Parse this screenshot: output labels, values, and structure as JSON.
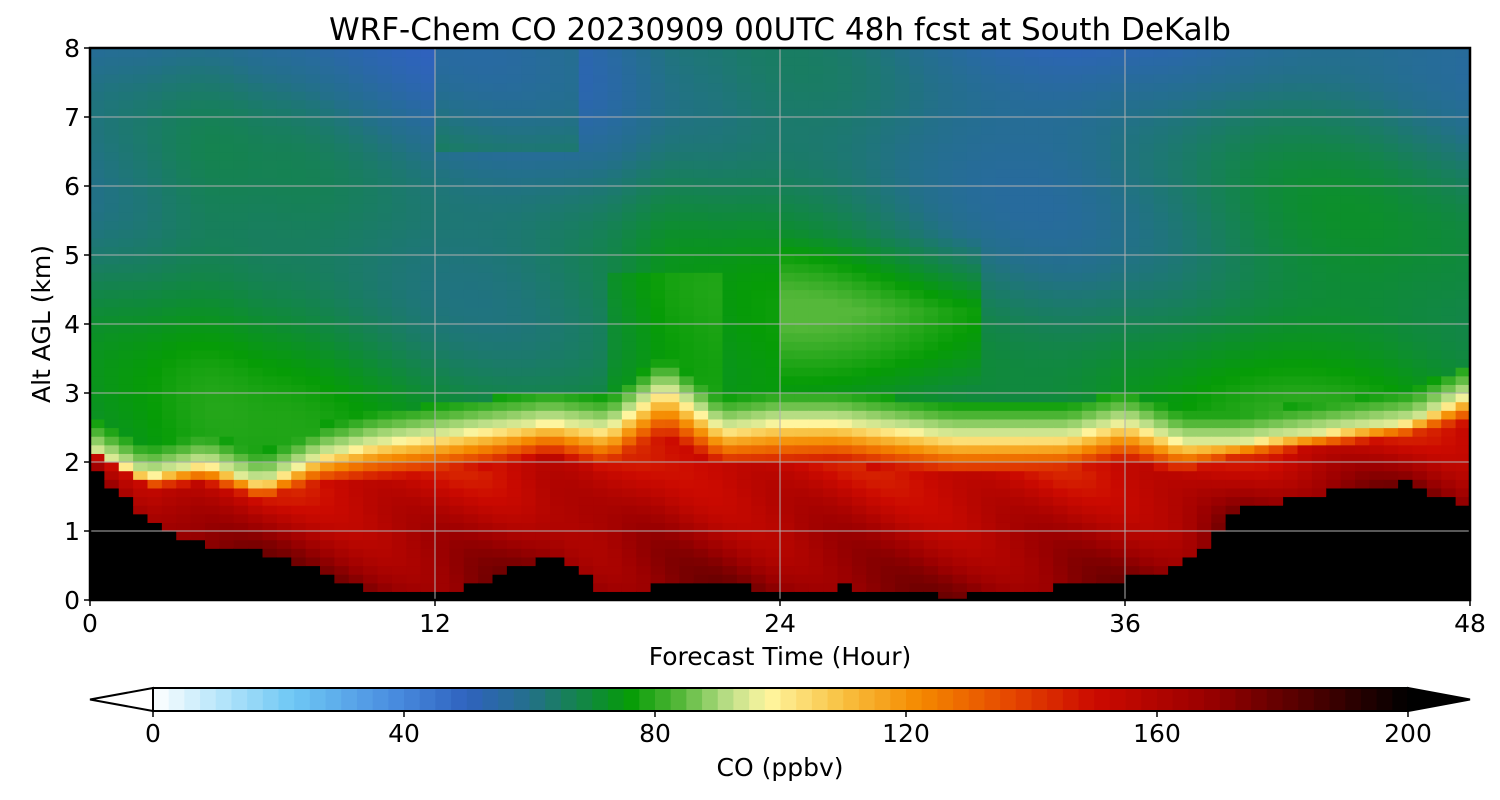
{
  "chart_data": {
    "type": "heatmap",
    "title": "WRF-Chem CO  20230909 00UTC 48h fcst at South DeKalb",
    "xlabel": "Forecast Time (Hour)",
    "ylabel": "Alt AGL (km)",
    "xlim": [
      0,
      48
    ],
    "ylim": [
      0,
      8
    ],
    "x_ticks": [
      "0",
      "12",
      "24",
      "36",
      "48"
    ],
    "y_ticks": [
      "0",
      "1",
      "2",
      "3",
      "4",
      "5",
      "6",
      "7",
      "8"
    ],
    "grid": true,
    "colorbar": {
      "label": "CO  (ppbv)",
      "range": [
        0,
        200
      ],
      "ticks": [
        "0",
        "40",
        "80",
        "120",
        "160",
        "200"
      ],
      "extend": "both",
      "palette": [
        {
          "v": 0,
          "c": "#ffffff"
        },
        {
          "v": 8,
          "c": "#c8ecfb"
        },
        {
          "v": 22,
          "c": "#6fc8f5"
        },
        {
          "v": 38,
          "c": "#4a8ee0"
        },
        {
          "v": 50,
          "c": "#2f62bf"
        },
        {
          "v": 60,
          "c": "#23708a"
        },
        {
          "v": 70,
          "c": "#0f8a3a"
        },
        {
          "v": 76,
          "c": "#069c06"
        },
        {
          "v": 84,
          "c": "#55b83a"
        },
        {
          "v": 92,
          "c": "#bfe08a"
        },
        {
          "v": 98,
          "c": "#fff6a0"
        },
        {
          "v": 110,
          "c": "#f8c040"
        },
        {
          "v": 122,
          "c": "#f58a00"
        },
        {
          "v": 136,
          "c": "#e64a00"
        },
        {
          "v": 150,
          "c": "#cc0a00"
        },
        {
          "v": 168,
          "c": "#9a0000"
        },
        {
          "v": 185,
          "c": "#4a0000"
        },
        {
          "v": 200,
          "c": "#000000"
        }
      ]
    },
    "profile_columns": {
      "hours": [
        0,
        2,
        4,
        6,
        8,
        10,
        12,
        14,
        16,
        18,
        20,
        22,
        24,
        26,
        28,
        30,
        32,
        34,
        36,
        38,
        40,
        42,
        44,
        46,
        48
      ],
      "black_layer_top_km": [
        2.0,
        1.1,
        0.8,
        0.7,
        0.4,
        0.15,
        0.1,
        0.3,
        0.7,
        0.1,
        0.2,
        0.3,
        0.05,
        0.2,
        0.1,
        0.05,
        0.1,
        0.2,
        0.3,
        0.5,
        1.3,
        1.5,
        1.6,
        1.7,
        1.3
      ],
      "boundary_layer_top_km": [
        2.2,
        1.8,
        2.0,
        1.7,
        2.1,
        2.3,
        2.4,
        2.5,
        2.6,
        2.5,
        3.1,
        2.5,
        2.6,
        2.6,
        2.5,
        2.4,
        2.4,
        2.4,
        2.6,
        2.3,
        2.3,
        2.4,
        2.5,
        2.6,
        3.0
      ]
    }
  }
}
